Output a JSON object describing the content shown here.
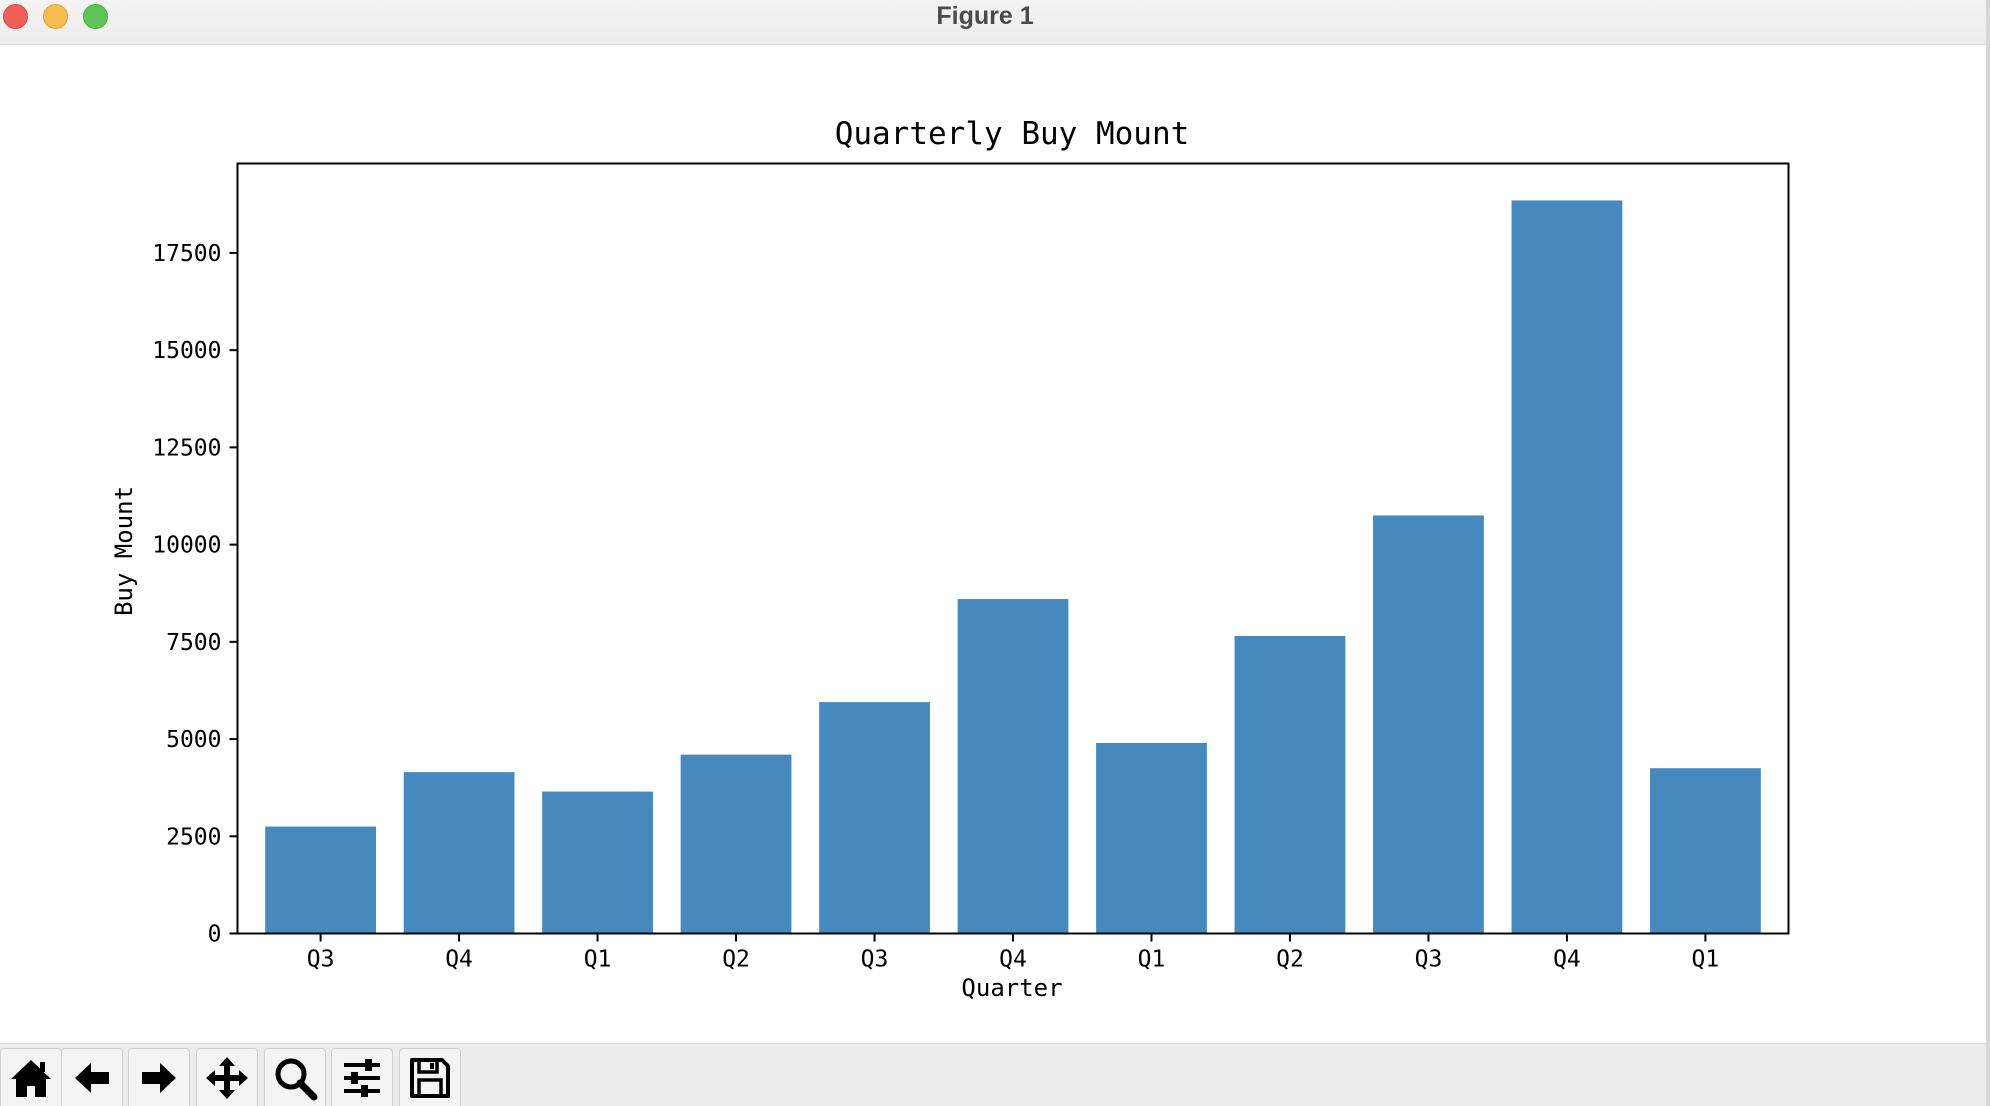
{
  "window": {
    "title": "Figure 1"
  },
  "toolbar": {
    "buttons": [
      {
        "name": "home-button",
        "icon": "home-icon"
      },
      {
        "name": "back-button",
        "icon": "arrow-left-icon"
      },
      {
        "name": "forward-button",
        "icon": "arrow-right-icon"
      },
      {
        "name": "pan-button",
        "icon": "move-icon"
      },
      {
        "name": "zoom-button",
        "icon": "magnifier-icon"
      },
      {
        "name": "configure-subplots-button",
        "icon": "sliders-icon"
      },
      {
        "name": "save-button",
        "icon": "floppy-disk-icon"
      }
    ]
  },
  "chart_data": {
    "type": "bar",
    "title": "Quarterly Buy Mount",
    "xlabel": "Quarter",
    "ylabel": "Buy Mount",
    "categories": [
      "Q3",
      "Q4",
      "Q1",
      "Q2",
      "Q3",
      "Q4",
      "Q1",
      "Q2",
      "Q3",
      "Q4",
      "Q1"
    ],
    "values": [
      2750,
      4150,
      3650,
      4600,
      5950,
      8600,
      4900,
      7650,
      10750,
      18850,
      4250
    ],
    "ylim": [
      0,
      19800
    ],
    "yticks": [
      0,
      2500,
      5000,
      7500,
      10000,
      12500,
      15000,
      17500
    ],
    "bar_color": "#4689be",
    "grid": false,
    "legend": "none"
  }
}
